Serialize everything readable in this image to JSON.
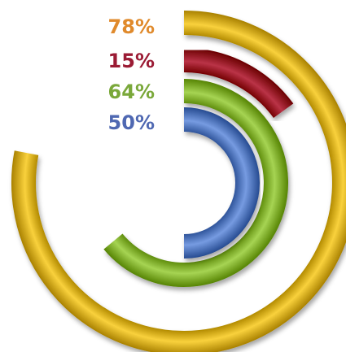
{
  "chart_data": {
    "type": "radial-bar",
    "title": "",
    "series": [
      {
        "label": "78%",
        "value": 78,
        "color": "#e0b823",
        "label_color": "#e08a2c"
      },
      {
        "label": "15%",
        "value": 15,
        "color": "#a11a2e",
        "label_color": "#9b1b34"
      },
      {
        "label": "64%",
        "value": 64,
        "color": "#8dbb3a",
        "label_color": "#7aa83a"
      },
      {
        "label": "50%",
        "value": 50,
        "color": "#5d82c8",
        "label_color": "#4f68b2"
      }
    ],
    "max": 100,
    "legend": "top-left"
  }
}
